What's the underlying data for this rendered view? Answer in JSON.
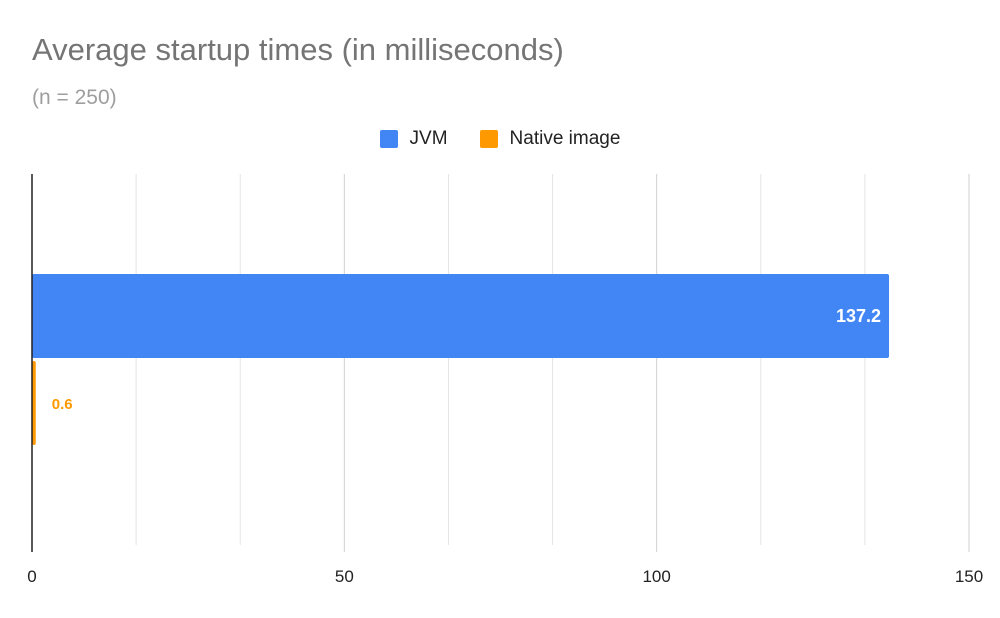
{
  "chart_data": {
    "type": "bar",
    "orientation": "horizontal",
    "title": "Average startup times (in milliseconds)",
    "subtitle": "(n = 250)",
    "categories": [
      ""
    ],
    "series": [
      {
        "name": "JVM",
        "values": [
          137.2
        ],
        "color": "#4285f4",
        "data_label": "137.2"
      },
      {
        "name": "Native image",
        "values": [
          0.6
        ],
        "color": "#ff9900",
        "data_label": "0.6"
      }
    ],
    "xlim": [
      0,
      150
    ],
    "x_ticks": [
      0,
      50,
      100,
      150
    ],
    "x_tick_labels": [
      "0",
      "50",
      "100",
      "150"
    ],
    "grid": true,
    "legend_position": "top"
  }
}
